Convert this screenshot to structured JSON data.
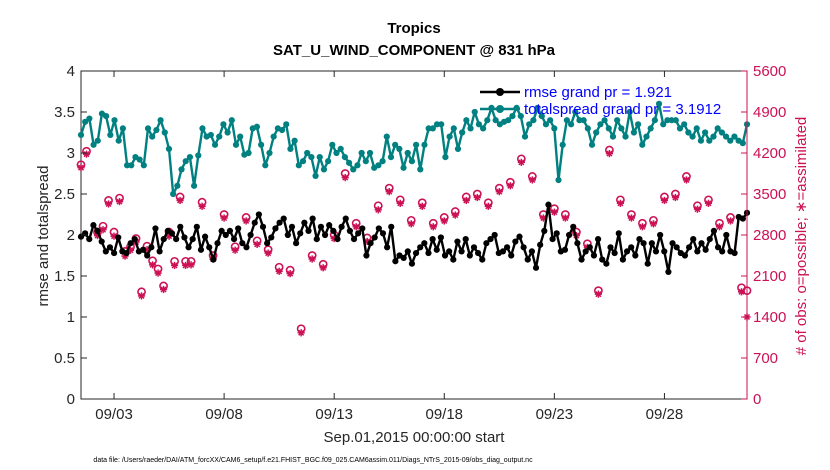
{
  "chart_data": {
    "type": "line",
    "title": "Tropics",
    "subtitle": "SAT_U_WIND_COMPONENT @ 831 hPa",
    "xlabel": "Sep.01,2015 00:00:00 start",
    "ylabel": "rmse and totalspread",
    "y2label": "# of obs: o=possible; ∗=assimilated",
    "footnote": "data file: /Users/raeder/DAI/ATM_forcXX/CAM6_setup/f.e21.FHIST_BGC.f09_025.CAM6assim.011/Diags_NTrS_2015-09/obs_diag_output.nc",
    "x_unit": "days since Sep.01,2015 00:00",
    "xlim": [
      0.5,
      30.75
    ],
    "ylim": [
      0,
      4
    ],
    "y2lim": [
      0,
      5600
    ],
    "x_ticks": [
      2.0,
      7.0,
      12.0,
      17.0,
      22.0,
      27.0
    ],
    "x_tick_labels": [
      "09/03",
      "09/08",
      "09/13",
      "09/18",
      "09/23",
      "09/28"
    ],
    "y_ticks": [
      0,
      0.5,
      1,
      1.5,
      2,
      2.5,
      3,
      3.5,
      4
    ],
    "y_tick_labels": [
      "0",
      "0.5",
      "1",
      "1.5",
      "2",
      "2.5",
      "3",
      "3.5",
      "4"
    ],
    "y2_ticks": [
      0,
      700,
      1400,
      2100,
      2800,
      3500,
      4200,
      4900,
      5600
    ],
    "y2_tick_labels": [
      "0",
      "700",
      "1400",
      "2100",
      "2800",
      "3500",
      "4200",
      "4900",
      "5600"
    ],
    "legend_position": "top-right",
    "colors": {
      "rmse": "#000000",
      "spread": "#008080",
      "obs": "#cc1155",
      "axis": "#262626",
      "y2axis": "#cc1155"
    },
    "series": [
      {
        "name": "rmse grand pr = 1.921",
        "marker": "filled-circle",
        "values": [
          1.98,
          2.02,
          1.95,
          2.12,
          2.05,
          1.92,
          1.8,
          1.85,
          1.78,
          1.97,
          1.8,
          1.78,
          1.9,
          1.95,
          1.8,
          1.82,
          1.75,
          1.85,
          2.08,
          1.8,
          1.95,
          2.05,
          2.02,
          1.95,
          2.1,
          1.97,
          1.85,
          1.95,
          2.1,
          1.82,
          1.98,
          1.85,
          1.7,
          1.9,
          2.05,
          2.0,
          2.05,
          1.95,
          2.08,
          1.9,
          1.85,
          2.0,
          2.15,
          2.25,
          2.1,
          1.9,
          1.97,
          2.08,
          2.15,
          2.2,
          2.0,
          2.1,
          1.9,
          2.02,
          2.15,
          2.05,
          2.2,
          1.95,
          2.1,
          2.0,
          2.12,
          2.05,
          1.95,
          2.1,
          2.2,
          2.05,
          1.95,
          2.02,
          2.08,
          1.75,
          1.9,
          1.97,
          2.08,
          2.02,
          1.85,
          2.1,
          1.68,
          1.75,
          1.72,
          1.8,
          1.65,
          1.78,
          1.85,
          1.9,
          1.78,
          1.95,
          1.82,
          1.97,
          1.75,
          1.8,
          1.7,
          1.92,
          1.8,
          1.95,
          1.75,
          1.85,
          1.78,
          1.7,
          1.9,
          1.95,
          2.0,
          1.78,
          1.8,
          1.85,
          1.75,
          1.92,
          1.98,
          1.85,
          1.7,
          1.8,
          1.6,
          1.88,
          2.05,
          2.37,
          1.95,
          2.02,
          1.8,
          1.82,
          2.0,
          2.1,
          1.9,
          1.7,
          1.8,
          1.85,
          1.75,
          1.95,
          1.7,
          1.65,
          1.85,
          1.78,
          2.02,
          1.7,
          1.8,
          1.85,
          1.75,
          1.95,
          1.9,
          1.65,
          1.9,
          1.8,
          2.0,
          1.8,
          1.55,
          1.9,
          1.85,
          1.78,
          1.75,
          1.85,
          1.95,
          1.8,
          1.9,
          1.82,
          1.95,
          2.05,
          1.85,
          1.8,
          2.0,
          1.8,
          1.78,
          2.22,
          2.2,
          2.27
        ]
      },
      {
        "name": "totalspread grand pr = 3.1912",
        "marker": "filled-circle",
        "values": [
          3.22,
          3.38,
          3.42,
          3.1,
          3.15,
          3.48,
          3.45,
          3.22,
          3.4,
          3.15,
          3.3,
          2.85,
          2.85,
          2.95,
          2.92,
          2.85,
          3.3,
          3.2,
          3.28,
          3.4,
          3.25,
          3.05,
          2.5,
          2.6,
          2.8,
          2.9,
          2.95,
          2.6,
          2.97,
          3.3,
          3.2,
          3.22,
          3.1,
          3.2,
          3.35,
          3.25,
          3.4,
          3.1,
          3.2,
          2.98,
          3.0,
          3.3,
          3.32,
          3.1,
          2.85,
          3.0,
          3.2,
          3.3,
          3.28,
          3.35,
          3.05,
          3.15,
          2.85,
          2.9,
          3.0,
          2.95,
          2.72,
          2.95,
          2.8,
          2.9,
          3.1,
          3.0,
          3.05,
          2.95,
          2.88,
          2.8,
          2.85,
          3.0,
          2.9,
          3.0,
          2.82,
          2.85,
          2.9,
          3.2,
          2.95,
          3.1,
          3.05,
          2.82,
          3.0,
          2.9,
          3.1,
          2.8,
          3.1,
          3.3,
          3.3,
          3.35,
          3.35,
          2.95,
          3.2,
          3.3,
          3.05,
          3.25,
          3.4,
          3.3,
          3.5,
          3.35,
          3.3,
          3.4,
          3.55,
          3.4,
          3.35,
          3.38,
          3.4,
          3.45,
          3.55,
          3.45,
          3.2,
          3.35,
          3.4,
          3.55,
          3.45,
          3.35,
          3.4,
          3.3,
          2.67,
          3.1,
          3.4,
          3.35,
          3.5,
          3.4,
          3.4,
          3.3,
          3.1,
          3.25,
          3.35,
          3.4,
          3.3,
          3.2,
          3.4,
          3.3,
          3.2,
          3.5,
          3.25,
          3.35,
          3.1,
          3.2,
          3.3,
          3.4,
          3.6,
          3.35,
          3.4,
          3.4,
          3.4,
          3.3,
          3.35,
          3.25,
          3.2,
          3.3,
          3.15,
          3.25,
          3.15,
          3.2,
          3.3,
          3.25,
          3.2,
          3.15,
          3.2,
          3.15,
          3.12,
          3.35
        ]
      }
    ],
    "obs_possible": [
      {
        "x": 0.5,
        "y": 4000
      },
      {
        "x": 0.75,
        "y": 4230
      },
      {
        "x": 1.25,
        "y": 2850
      },
      {
        "x": 1.5,
        "y": 2950
      },
      {
        "x": 1.75,
        "y": 3390
      },
      {
        "x": 2.0,
        "y": 2850
      },
      {
        "x": 2.25,
        "y": 3430
      },
      {
        "x": 2.5,
        "y": 2520
      },
      {
        "x": 2.75,
        "y": 2600
      },
      {
        "x": 3.0,
        "y": 2740
      },
      {
        "x": 3.25,
        "y": 1830
      },
      {
        "x": 3.5,
        "y": 2610
      },
      {
        "x": 3.75,
        "y": 2360
      },
      {
        "x": 4.0,
        "y": 2220
      },
      {
        "x": 4.25,
        "y": 1930
      },
      {
        "x": 4.5,
        "y": 2850
      },
      {
        "x": 4.75,
        "y": 2350
      },
      {
        "x": 5.0,
        "y": 3450
      },
      {
        "x": 5.25,
        "y": 2350
      },
      {
        "x": 5.5,
        "y": 2350
      },
      {
        "x": 6.0,
        "y": 3360
      },
      {
        "x": 6.5,
        "y": 2450
      },
      {
        "x": 7.0,
        "y": 3150
      },
      {
        "x": 7.5,
        "y": 2600
      },
      {
        "x": 8.0,
        "y": 3100
      },
      {
        "x": 8.5,
        "y": 2700
      },
      {
        "x": 9.0,
        "y": 2550
      },
      {
        "x": 9.5,
        "y": 2250
      },
      {
        "x": 10.0,
        "y": 2200
      },
      {
        "x": 10.5,
        "y": 1200
      },
      {
        "x": 11.0,
        "y": 2450
      },
      {
        "x": 11.5,
        "y": 2300
      },
      {
        "x": 12.0,
        "y": 2800
      },
      {
        "x": 12.5,
        "y": 3850
      },
      {
        "x": 13.0,
        "y": 3000
      },
      {
        "x": 13.5,
        "y": 2750
      },
      {
        "x": 14.0,
        "y": 3300
      },
      {
        "x": 14.5,
        "y": 3600
      },
      {
        "x": 15.0,
        "y": 3400
      },
      {
        "x": 15.5,
        "y": 3050
      },
      {
        "x": 16.0,
        "y": 3350
      },
      {
        "x": 16.5,
        "y": 3000
      },
      {
        "x": 17.0,
        "y": 3100
      },
      {
        "x": 17.5,
        "y": 3200
      },
      {
        "x": 18.0,
        "y": 3450
      },
      {
        "x": 18.5,
        "y": 3500
      },
      {
        "x": 19.0,
        "y": 3350
      },
      {
        "x": 19.5,
        "y": 3600
      },
      {
        "x": 20.0,
        "y": 3700
      },
      {
        "x": 20.5,
        "y": 4100
      },
      {
        "x": 21.0,
        "y": 3800
      },
      {
        "x": 21.5,
        "y": 3150
      },
      {
        "x": 22.0,
        "y": 3250
      },
      {
        "x": 22.5,
        "y": 3150
      },
      {
        "x": 23.0,
        "y": 2850
      },
      {
        "x": 23.5,
        "y": 2650
      },
      {
        "x": 24.0,
        "y": 1850
      },
      {
        "x": 24.5,
        "y": 4250
      },
      {
        "x": 25.0,
        "y": 3400
      },
      {
        "x": 25.5,
        "y": 3150
      },
      {
        "x": 26.0,
        "y": 3000
      },
      {
        "x": 26.5,
        "y": 3050
      },
      {
        "x": 27.0,
        "y": 3450
      },
      {
        "x": 27.5,
        "y": 3500
      },
      {
        "x": 28.0,
        "y": 3800
      },
      {
        "x": 28.5,
        "y": 3300
      },
      {
        "x": 29.0,
        "y": 3400
      },
      {
        "x": 29.5,
        "y": 3000
      },
      {
        "x": 30.0,
        "y": 3100
      },
      {
        "x": 30.5,
        "y": 1900
      },
      {
        "x": 30.75,
        "y": 1850
      }
    ],
    "obs_assimilated": [
      {
        "x": 0.5,
        "y": 3950
      },
      {
        "x": 0.75,
        "y": 4180
      },
      {
        "x": 1.25,
        "y": 2790
      },
      {
        "x": 1.5,
        "y": 2890
      },
      {
        "x": 1.75,
        "y": 3330
      },
      {
        "x": 2.0,
        "y": 2780
      },
      {
        "x": 2.25,
        "y": 3370
      },
      {
        "x": 2.5,
        "y": 2440
      },
      {
        "x": 2.75,
        "y": 2540
      },
      {
        "x": 3.0,
        "y": 2680
      },
      {
        "x": 3.25,
        "y": 1760
      },
      {
        "x": 3.5,
        "y": 2550
      },
      {
        "x": 3.75,
        "y": 2290
      },
      {
        "x": 4.0,
        "y": 2150
      },
      {
        "x": 4.25,
        "y": 1870
      },
      {
        "x": 4.5,
        "y": 2780
      },
      {
        "x": 4.75,
        "y": 2280
      },
      {
        "x": 5.0,
        "y": 3390
      },
      {
        "x": 5.25,
        "y": 2280
      },
      {
        "x": 5.5,
        "y": 2290
      },
      {
        "x": 6.0,
        "y": 3290
      },
      {
        "x": 6.5,
        "y": 2390
      },
      {
        "x": 7.0,
        "y": 3090
      },
      {
        "x": 7.5,
        "y": 2540
      },
      {
        "x": 8.0,
        "y": 3040
      },
      {
        "x": 8.5,
        "y": 2640
      },
      {
        "x": 9.0,
        "y": 2490
      },
      {
        "x": 9.5,
        "y": 2180
      },
      {
        "x": 10.0,
        "y": 2140
      },
      {
        "x": 10.5,
        "y": 1130
      },
      {
        "x": 11.0,
        "y": 2390
      },
      {
        "x": 11.5,
        "y": 2240
      },
      {
        "x": 12.0,
        "y": 2740
      },
      {
        "x": 12.5,
        "y": 3780
      },
      {
        "x": 13.0,
        "y": 2940
      },
      {
        "x": 13.5,
        "y": 2690
      },
      {
        "x": 14.0,
        "y": 3230
      },
      {
        "x": 14.5,
        "y": 3540
      },
      {
        "x": 15.0,
        "y": 3340
      },
      {
        "x": 15.5,
        "y": 2990
      },
      {
        "x": 16.0,
        "y": 3290
      },
      {
        "x": 16.5,
        "y": 2940
      },
      {
        "x": 17.0,
        "y": 3040
      },
      {
        "x": 17.5,
        "y": 3140
      },
      {
        "x": 18.0,
        "y": 3390
      },
      {
        "x": 18.5,
        "y": 3440
      },
      {
        "x": 19.0,
        "y": 3290
      },
      {
        "x": 19.5,
        "y": 3540
      },
      {
        "x": 20.0,
        "y": 3640
      },
      {
        "x": 20.5,
        "y": 4040
      },
      {
        "x": 21.0,
        "y": 3740
      },
      {
        "x": 21.5,
        "y": 3090
      },
      {
        "x": 22.0,
        "y": 3190
      },
      {
        "x": 22.5,
        "y": 3090
      },
      {
        "x": 23.0,
        "y": 2790
      },
      {
        "x": 23.5,
        "y": 2590
      },
      {
        "x": 24.0,
        "y": 1790
      },
      {
        "x": 24.5,
        "y": 4190
      },
      {
        "x": 25.0,
        "y": 3340
      },
      {
        "x": 25.5,
        "y": 3090
      },
      {
        "x": 26.0,
        "y": 2940
      },
      {
        "x": 26.5,
        "y": 2990
      },
      {
        "x": 27.0,
        "y": 3390
      },
      {
        "x": 27.5,
        "y": 3440
      },
      {
        "x": 28.0,
        "y": 3740
      },
      {
        "x": 28.5,
        "y": 3240
      },
      {
        "x": 29.0,
        "y": 3340
      },
      {
        "x": 29.5,
        "y": 2940
      },
      {
        "x": 30.0,
        "y": 3040
      },
      {
        "x": 30.5,
        "y": 1830
      },
      {
        "x": 30.75,
        "y": 1400
      }
    ]
  }
}
